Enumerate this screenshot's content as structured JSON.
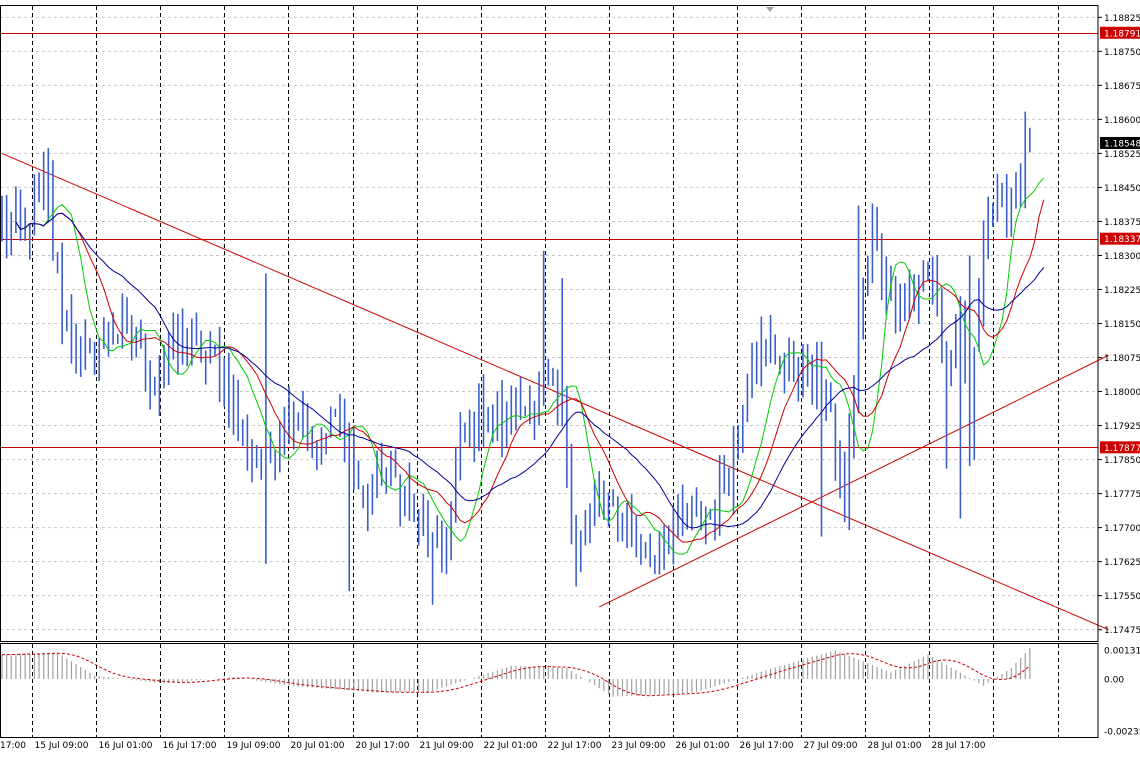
{
  "colors": {
    "background": "#ffffff",
    "candles": "#3a5fcd",
    "grid": "#c8c8c8",
    "vertical_grid": "#000000",
    "level_lines": "#cc0000",
    "trendlines": "#cc0000",
    "ma_fast": "#00cc00",
    "ma_mid": "#cc0000",
    "ma_slow": "#000099",
    "osc_bars": "#a0a0a0",
    "osc_signal": "#cc0000",
    "price_tag_bg": "#cc0000",
    "current_tag_bg": "#000000"
  },
  "chart_data": {
    "type": "candlestick",
    "y_axis": {
      "min": 1.1745,
      "max": 1.1885,
      "tick_labels": [
        "1.18825",
        "1.18750",
        "1.18675",
        "1.18600",
        "1.18525",
        "1.18450",
        "1.18375",
        "1.18300",
        "1.18225",
        "1.18150",
        "1.18075",
        "1.18000",
        "1.17925",
        "1.17850",
        "1.17775",
        "1.17700",
        "1.17625",
        "1.17550",
        "1.17475"
      ]
    },
    "x_axis": {
      "tick_labels": [
        "17:00",
        "15 Jul 09:00",
        "16 Jul 01:00",
        "16 Jul 17:00",
        "19 Jul 09:00",
        "20 Jul 01:00",
        "20 Jul 17:00",
        "21 Jul 09:00",
        "22 Jul 01:00",
        "22 Jul 17:00",
        "23 Jul 09:00",
        "26 Jul 01:00",
        "26 Jul 17:00",
        "27 Jul 09:00",
        "28 Jul 01:00",
        "28 Jul 17:00"
      ]
    },
    "price_levels": [
      {
        "label": "1.18791",
        "value": 1.18791
      },
      {
        "label": "1.18337",
        "value": 1.18337
      },
      {
        "label": "1.17877",
        "value": 1.17877
      }
    ],
    "current_price": {
      "label": "1.18548",
      "value": 1.18548
    },
    "trendlines": [
      {
        "name": "descending",
        "from": {
          "bar": 0,
          "price": 1.18525
        },
        "to": {
          "bar": 239,
          "price": 1.17475
        }
      },
      {
        "name": "ascending",
        "from": {
          "bar": 129,
          "price": 1.17525
        },
        "to": {
          "bar": 239,
          "price": 1.1808
        }
      }
    ],
    "anchors": [
      [
        0,
        1.1836
      ],
      [
        5,
        1.1835
      ],
      [
        9,
        1.1845
      ],
      [
        13,
        1.1818
      ],
      [
        18,
        1.1806
      ],
      [
        24,
        1.1814
      ],
      [
        29,
        1.1812
      ],
      [
        33,
        1.1801
      ],
      [
        38,
        1.1812
      ],
      [
        42,
        1.1809
      ],
      [
        47,
        1.1806
      ],
      [
        52,
        1.1791
      ],
      [
        56,
        1.1782
      ],
      [
        60,
        1.1793
      ],
      [
        64,
        1.1797
      ],
      [
        68,
        1.1786
      ],
      [
        73,
        1.1796
      ],
      [
        78,
        1.1774
      ],
      [
        82,
        1.1782
      ],
      [
        86,
        1.178
      ],
      [
        90,
        1.177
      ],
      [
        95,
        1.1763
      ],
      [
        99,
        1.1787
      ],
      [
        104,
        1.1797
      ],
      [
        108,
        1.1793
      ],
      [
        113,
        1.1797
      ],
      [
        117,
        1.1802
      ],
      [
        121,
        1.1794
      ],
      [
        124,
        1.1766
      ],
      [
        128,
        1.1776
      ],
      [
        132,
        1.1773
      ],
      [
        136,
        1.1771
      ],
      [
        140,
        1.1763
      ],
      [
        144,
        1.1768
      ],
      [
        148,
        1.1773
      ],
      [
        153,
        1.1773
      ],
      [
        157,
        1.1782
      ],
      [
        162,
        1.1809
      ],
      [
        166,
        1.1809
      ],
      [
        170,
        1.1806
      ],
      [
        174,
        1.1804
      ],
      [
        178,
        1.1797
      ],
      [
        182,
        1.1774
      ],
      [
        185,
        1.1817
      ],
      [
        188,
        1.1835
      ],
      [
        192,
        1.1821
      ],
      [
        197,
        1.1822
      ],
      [
        201,
        1.1826
      ],
      [
        204,
        1.1804
      ],
      [
        207,
        1.1814
      ],
      [
        209,
        1.179
      ],
      [
        212,
        1.1838
      ],
      [
        216,
        1.1843
      ],
      [
        219,
        1.1845
      ],
      [
        222,
        1.1856
      ]
    ],
    "indicators": [
      {
        "name": "MA fast",
        "color": "#00cc00",
        "period": 6
      },
      {
        "name": "MA mid",
        "color": "#cc0000",
        "period": 12
      },
      {
        "name": "MA slow",
        "color": "#000099",
        "period": 24
      }
    ],
    "oscillator": {
      "tick_labels": [
        "0.001312",
        "0.00",
        "-0.00235"
      ],
      "anchors": [
        [
          0,
          0.0011
        ],
        [
          12,
          0.0012
        ],
        [
          20,
          0.00015
        ],
        [
          35,
          -0.0002
        ],
        [
          50,
          0.0001
        ],
        [
          62,
          -0.0003
        ],
        [
          80,
          -0.0006
        ],
        [
          92,
          -0.0006
        ],
        [
          110,
          0.0006
        ],
        [
          122,
          0.0005
        ],
        [
          132,
          -0.0008
        ],
        [
          150,
          -0.0006
        ],
        [
          165,
          0.0004
        ],
        [
          180,
          0.0013
        ],
        [
          192,
          0.0003
        ],
        [
          200,
          0.0011
        ],
        [
          212,
          -0.0003
        ],
        [
          218,
          0.0005
        ],
        [
          222,
          0.0014
        ]
      ]
    }
  }
}
